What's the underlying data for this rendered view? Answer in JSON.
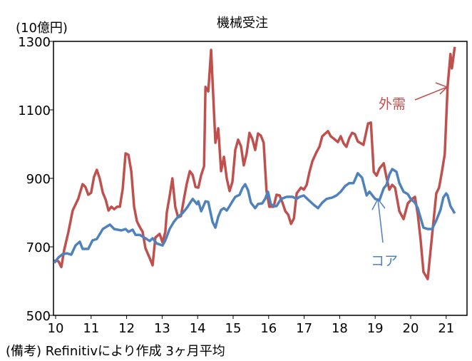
{
  "chart_data": {
    "type": "line",
    "title": "機械受注",
    "ylabel": "(10億円)",
    "ylim": [
      500,
      1300
    ],
    "yticks": [
      "500",
      "700",
      "900",
      "1100",
      "1300"
    ],
    "xticks": [
      "10",
      "11",
      "12",
      "13",
      "14",
      "15",
      "16",
      "17",
      "18",
      "19",
      "20",
      "21"
    ],
    "xlim": [
      10,
      21.6
    ],
    "grid": false,
    "note": "(備考) Refinitivにより作成 3ヶ月平均",
    "series": [
      {
        "name": "外需",
        "color": "#c0504d",
        "points": [
          [
            9.96,
            660
          ],
          [
            10.08,
            658
          ],
          [
            10.16,
            641
          ],
          [
            10.24,
            691
          ],
          [
            10.36,
            743
          ],
          [
            10.48,
            806
          ],
          [
            10.64,
            841
          ],
          [
            10.76,
            883
          ],
          [
            10.84,
            875
          ],
          [
            10.92,
            852
          ],
          [
            11.0,
            858
          ],
          [
            11.08,
            904
          ],
          [
            11.16,
            925
          ],
          [
            11.24,
            900
          ],
          [
            11.33,
            858
          ],
          [
            11.41,
            838
          ],
          [
            11.49,
            806
          ],
          [
            11.57,
            817
          ],
          [
            11.65,
            810
          ],
          [
            11.73,
            817
          ],
          [
            11.81,
            817
          ],
          [
            11.89,
            869
          ],
          [
            11.97,
            973
          ],
          [
            12.05,
            969
          ],
          [
            12.13,
            921
          ],
          [
            12.21,
            817
          ],
          [
            12.29,
            775
          ],
          [
            12.37,
            758
          ],
          [
            12.45,
            744
          ],
          [
            12.53,
            696
          ],
          [
            12.65,
            667
          ],
          [
            12.73,
            646
          ],
          [
            12.81,
            727
          ],
          [
            12.93,
            738
          ],
          [
            13.01,
            713
          ],
          [
            13.09,
            744
          ],
          [
            13.13,
            800
          ],
          [
            13.21,
            848
          ],
          [
            13.29,
            900
          ],
          [
            13.37,
            817
          ],
          [
            13.45,
            786
          ],
          [
            13.53,
            790
          ],
          [
            13.61,
            838
          ],
          [
            13.69,
            883
          ],
          [
            13.78,
            921
          ],
          [
            13.86,
            910
          ],
          [
            13.94,
            875
          ],
          [
            14.02,
            873
          ],
          [
            14.1,
            910
          ],
          [
            14.18,
            935
          ],
          [
            14.22,
            1167
          ],
          [
            14.3,
            1154
          ],
          [
            14.38,
            1275
          ],
          [
            14.5,
            1004
          ],
          [
            14.58,
            1046
          ],
          [
            14.66,
            921
          ],
          [
            14.74,
            963
          ],
          [
            14.82,
            900
          ],
          [
            14.9,
            863
          ],
          [
            14.98,
            890
          ],
          [
            15.06,
            983
          ],
          [
            15.14,
            1013
          ],
          [
            15.22,
            994
          ],
          [
            15.3,
            938
          ],
          [
            15.38,
            973
          ],
          [
            15.46,
            1033
          ],
          [
            15.54,
            1015
          ],
          [
            15.62,
            983
          ],
          [
            15.7,
            1031
          ],
          [
            15.78,
            1025
          ],
          [
            15.86,
            1004
          ],
          [
            15.94,
            863
          ],
          [
            16.02,
            817
          ],
          [
            16.14,
            817
          ],
          [
            16.22,
            852
          ],
          [
            16.31,
            850
          ],
          [
            16.39,
            829
          ],
          [
            16.47,
            804
          ],
          [
            16.55,
            794
          ],
          [
            16.63,
            767
          ],
          [
            16.71,
            783
          ],
          [
            16.79,
            856
          ],
          [
            16.91,
            873
          ],
          [
            16.99,
            867
          ],
          [
            17.07,
            881
          ],
          [
            17.15,
            919
          ],
          [
            17.23,
            950
          ],
          [
            17.35,
            977
          ],
          [
            17.43,
            992
          ],
          [
            17.51,
            1023
          ],
          [
            17.67,
            1038
          ],
          [
            17.75,
            1023
          ],
          [
            17.87,
            1013
          ],
          [
            17.95,
            1006
          ],
          [
            18.03,
            1023
          ],
          [
            18.11,
            1002
          ],
          [
            18.19,
            992
          ],
          [
            18.27,
            1017
          ],
          [
            18.35,
            1033
          ],
          [
            18.43,
            1029
          ],
          [
            18.51,
            1008
          ],
          [
            18.67,
            998
          ],
          [
            18.8,
            1060
          ],
          [
            18.88,
            1063
          ],
          [
            18.96,
            919
          ],
          [
            19.04,
            908
          ],
          [
            19.12,
            929
          ],
          [
            19.24,
            944
          ],
          [
            19.32,
            902
          ],
          [
            19.4,
            867
          ],
          [
            19.48,
            881
          ],
          [
            19.56,
            873
          ],
          [
            19.68,
            804
          ],
          [
            19.8,
            781
          ],
          [
            19.92,
            827
          ],
          [
            20.04,
            840
          ],
          [
            20.12,
            846
          ],
          [
            20.2,
            794
          ],
          [
            20.28,
            721
          ],
          [
            20.36,
            627
          ],
          [
            20.48,
            606
          ],
          [
            20.6,
            731
          ],
          [
            20.72,
            856
          ],
          [
            20.8,
            873
          ],
          [
            20.88,
            919
          ],
          [
            20.96,
            971
          ],
          [
            21.04,
            1169
          ],
          [
            21.12,
            1263
          ],
          [
            21.16,
            1221
          ],
          [
            21.24,
            1284
          ]
        ]
      },
      {
        "name": "コア",
        "color": "#4f81bd",
        "points": [
          [
            9.96,
            653
          ],
          [
            10.08,
            669
          ],
          [
            10.2,
            679
          ],
          [
            10.32,
            681
          ],
          [
            10.44,
            677
          ],
          [
            10.56,
            704
          ],
          [
            10.68,
            715
          ],
          [
            10.76,
            694
          ],
          [
            10.92,
            694
          ],
          [
            11.04,
            719
          ],
          [
            11.16,
            723
          ],
          [
            11.33,
            752
          ],
          [
            11.53,
            765
          ],
          [
            11.65,
            752
          ],
          [
            11.85,
            748
          ],
          [
            11.97,
            752
          ],
          [
            12.05,
            744
          ],
          [
            12.17,
            750
          ],
          [
            12.25,
            735
          ],
          [
            12.37,
            735
          ],
          [
            12.53,
            725
          ],
          [
            12.65,
            717
          ],
          [
            12.73,
            725
          ],
          [
            12.85,
            710
          ],
          [
            13.01,
            704
          ],
          [
            13.09,
            719
          ],
          [
            13.21,
            752
          ],
          [
            13.33,
            773
          ],
          [
            13.45,
            788
          ],
          [
            13.57,
            798
          ],
          [
            13.69,
            813
          ],
          [
            13.78,
            827
          ],
          [
            13.86,
            840
          ],
          [
            13.98,
            825
          ],
          [
            14.02,
            833
          ],
          [
            14.1,
            804
          ],
          [
            14.22,
            833
          ],
          [
            14.3,
            831
          ],
          [
            14.42,
            773
          ],
          [
            14.5,
            756
          ],
          [
            14.58,
            788
          ],
          [
            14.66,
            808
          ],
          [
            14.74,
            813
          ],
          [
            14.82,
            806
          ],
          [
            14.9,
            819
          ],
          [
            14.98,
            833
          ],
          [
            15.06,
            846
          ],
          [
            15.18,
            852
          ],
          [
            15.26,
            871
          ],
          [
            15.34,
            883
          ],
          [
            15.42,
            865
          ],
          [
            15.5,
            829
          ],
          [
            15.62,
            813
          ],
          [
            15.7,
            825
          ],
          [
            15.82,
            827
          ],
          [
            15.9,
            840
          ],
          [
            15.98,
            861
          ],
          [
            16.06,
            825
          ],
          [
            16.14,
            819
          ],
          [
            16.22,
            819
          ],
          [
            16.35,
            840
          ],
          [
            16.51,
            846
          ],
          [
            16.67,
            846
          ],
          [
            16.79,
            840
          ],
          [
            16.87,
            846
          ],
          [
            16.99,
            850
          ],
          [
            17.11,
            838
          ],
          [
            17.27,
            823
          ],
          [
            17.39,
            813
          ],
          [
            17.51,
            829
          ],
          [
            17.63,
            840
          ],
          [
            17.79,
            844
          ],
          [
            17.91,
            850
          ],
          [
            18.03,
            861
          ],
          [
            18.15,
            877
          ],
          [
            18.27,
            886
          ],
          [
            18.39,
            886
          ],
          [
            18.51,
            915
          ],
          [
            18.63,
            902
          ],
          [
            18.76,
            850
          ],
          [
            18.84,
            861
          ],
          [
            19.0,
            840
          ],
          [
            19.12,
            836
          ],
          [
            19.24,
            871
          ],
          [
            19.32,
            881
          ],
          [
            19.4,
            911
          ],
          [
            19.48,
            927
          ],
          [
            19.6,
            919
          ],
          [
            19.68,
            886
          ],
          [
            19.8,
            861
          ],
          [
            19.92,
            854
          ],
          [
            20.0,
            840
          ],
          [
            20.12,
            829
          ],
          [
            20.2,
            813
          ],
          [
            20.36,
            756
          ],
          [
            20.48,
            752
          ],
          [
            20.6,
            752
          ],
          [
            20.72,
            777
          ],
          [
            20.84,
            808
          ],
          [
            20.92,
            844
          ],
          [
            21.0,
            856
          ],
          [
            21.04,
            850
          ],
          [
            21.12,
            819
          ],
          [
            21.24,
            798
          ]
        ]
      }
    ]
  }
}
